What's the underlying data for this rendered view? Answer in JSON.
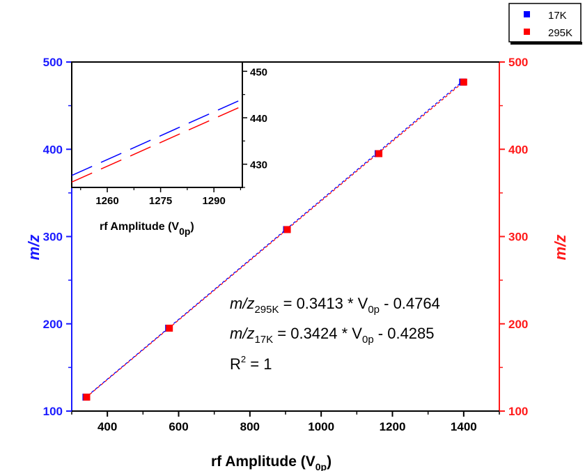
{
  "chart_data": [
    {
      "type": "scatter",
      "xlabel": "rf Amplitude (V",
      "xlabel_sub": "0p",
      "xlabel_close": ")",
      "ylabel_left": "m/z",
      "ylabel_right": "m/z",
      "xlim": [
        300,
        1500
      ],
      "ylim": [
        100,
        500
      ],
      "xticks": [
        400,
        600,
        800,
        1000,
        1200,
        1400
      ],
      "yticks": [
        100,
        200,
        300,
        400,
        500
      ],
      "grid": false,
      "legend_placement": "top-right outside",
      "series": [
        {
          "name": "17K",
          "color": "#0000ff",
          "marker": "square",
          "x": [
            340,
            572,
            903,
            1160,
            1397
          ],
          "y": [
            116,
            195,
            308,
            395,
            477
          ]
        },
        {
          "name": "295K",
          "color": "#ff0000",
          "marker": "square",
          "x": [
            342,
            574,
            905,
            1162,
            1400
          ],
          "y": [
            116,
            195,
            308,
            395,
            477
          ]
        }
      ],
      "fits": [
        {
          "series": "295K",
          "slope": 0.3413,
          "intercept": -0.4764,
          "color": "#ff0000",
          "style": "dashed"
        },
        {
          "series": "17K",
          "slope": 0.3424,
          "intercept": -0.4285,
          "color": "#0000ff",
          "style": "dashed"
        }
      ],
      "annotations": {
        "eq1_prefix": "m/z",
        "eq1_sub": "295K",
        "eq1_mid": " = 0.3413 * V",
        "eq1_sub2": "0p",
        "eq1_end": " - 0.4764",
        "eq2_prefix": "m/z",
        "eq2_sub": "17K",
        "eq2_mid": " = 0.3424 * V",
        "eq2_sub2": "0p",
        "eq2_end": " - 0.4285",
        "r2_base": "R",
        "r2_sup": "2",
        "r2_end": " = 1"
      }
    },
    {
      "type": "line",
      "role": "inset",
      "xlabel": "rf Amplitude (V",
      "xlabel_sub": "0p",
      "xlabel_close": ")",
      "xlim": [
        1250,
        1298
      ],
      "ylim": [
        425,
        452
      ],
      "xticks": [
        1260,
        1275,
        1290
      ],
      "yticks": [
        430,
        440,
        450
      ],
      "y_axis_side": "right",
      "series": [
        {
          "name": "17K",
          "color": "#0000ff",
          "style": "dashed",
          "slope": 0.3424,
          "intercept": -0.4285
        },
        {
          "name": "295K",
          "color": "#ff0000",
          "style": "dashed",
          "slope": 0.3413,
          "intercept": -0.4764
        }
      ]
    }
  ],
  "colors": {
    "blue_axis": "#1a1aff",
    "red_axis": "#ff1a1a",
    "fit_line": "#7a2aa0"
  }
}
